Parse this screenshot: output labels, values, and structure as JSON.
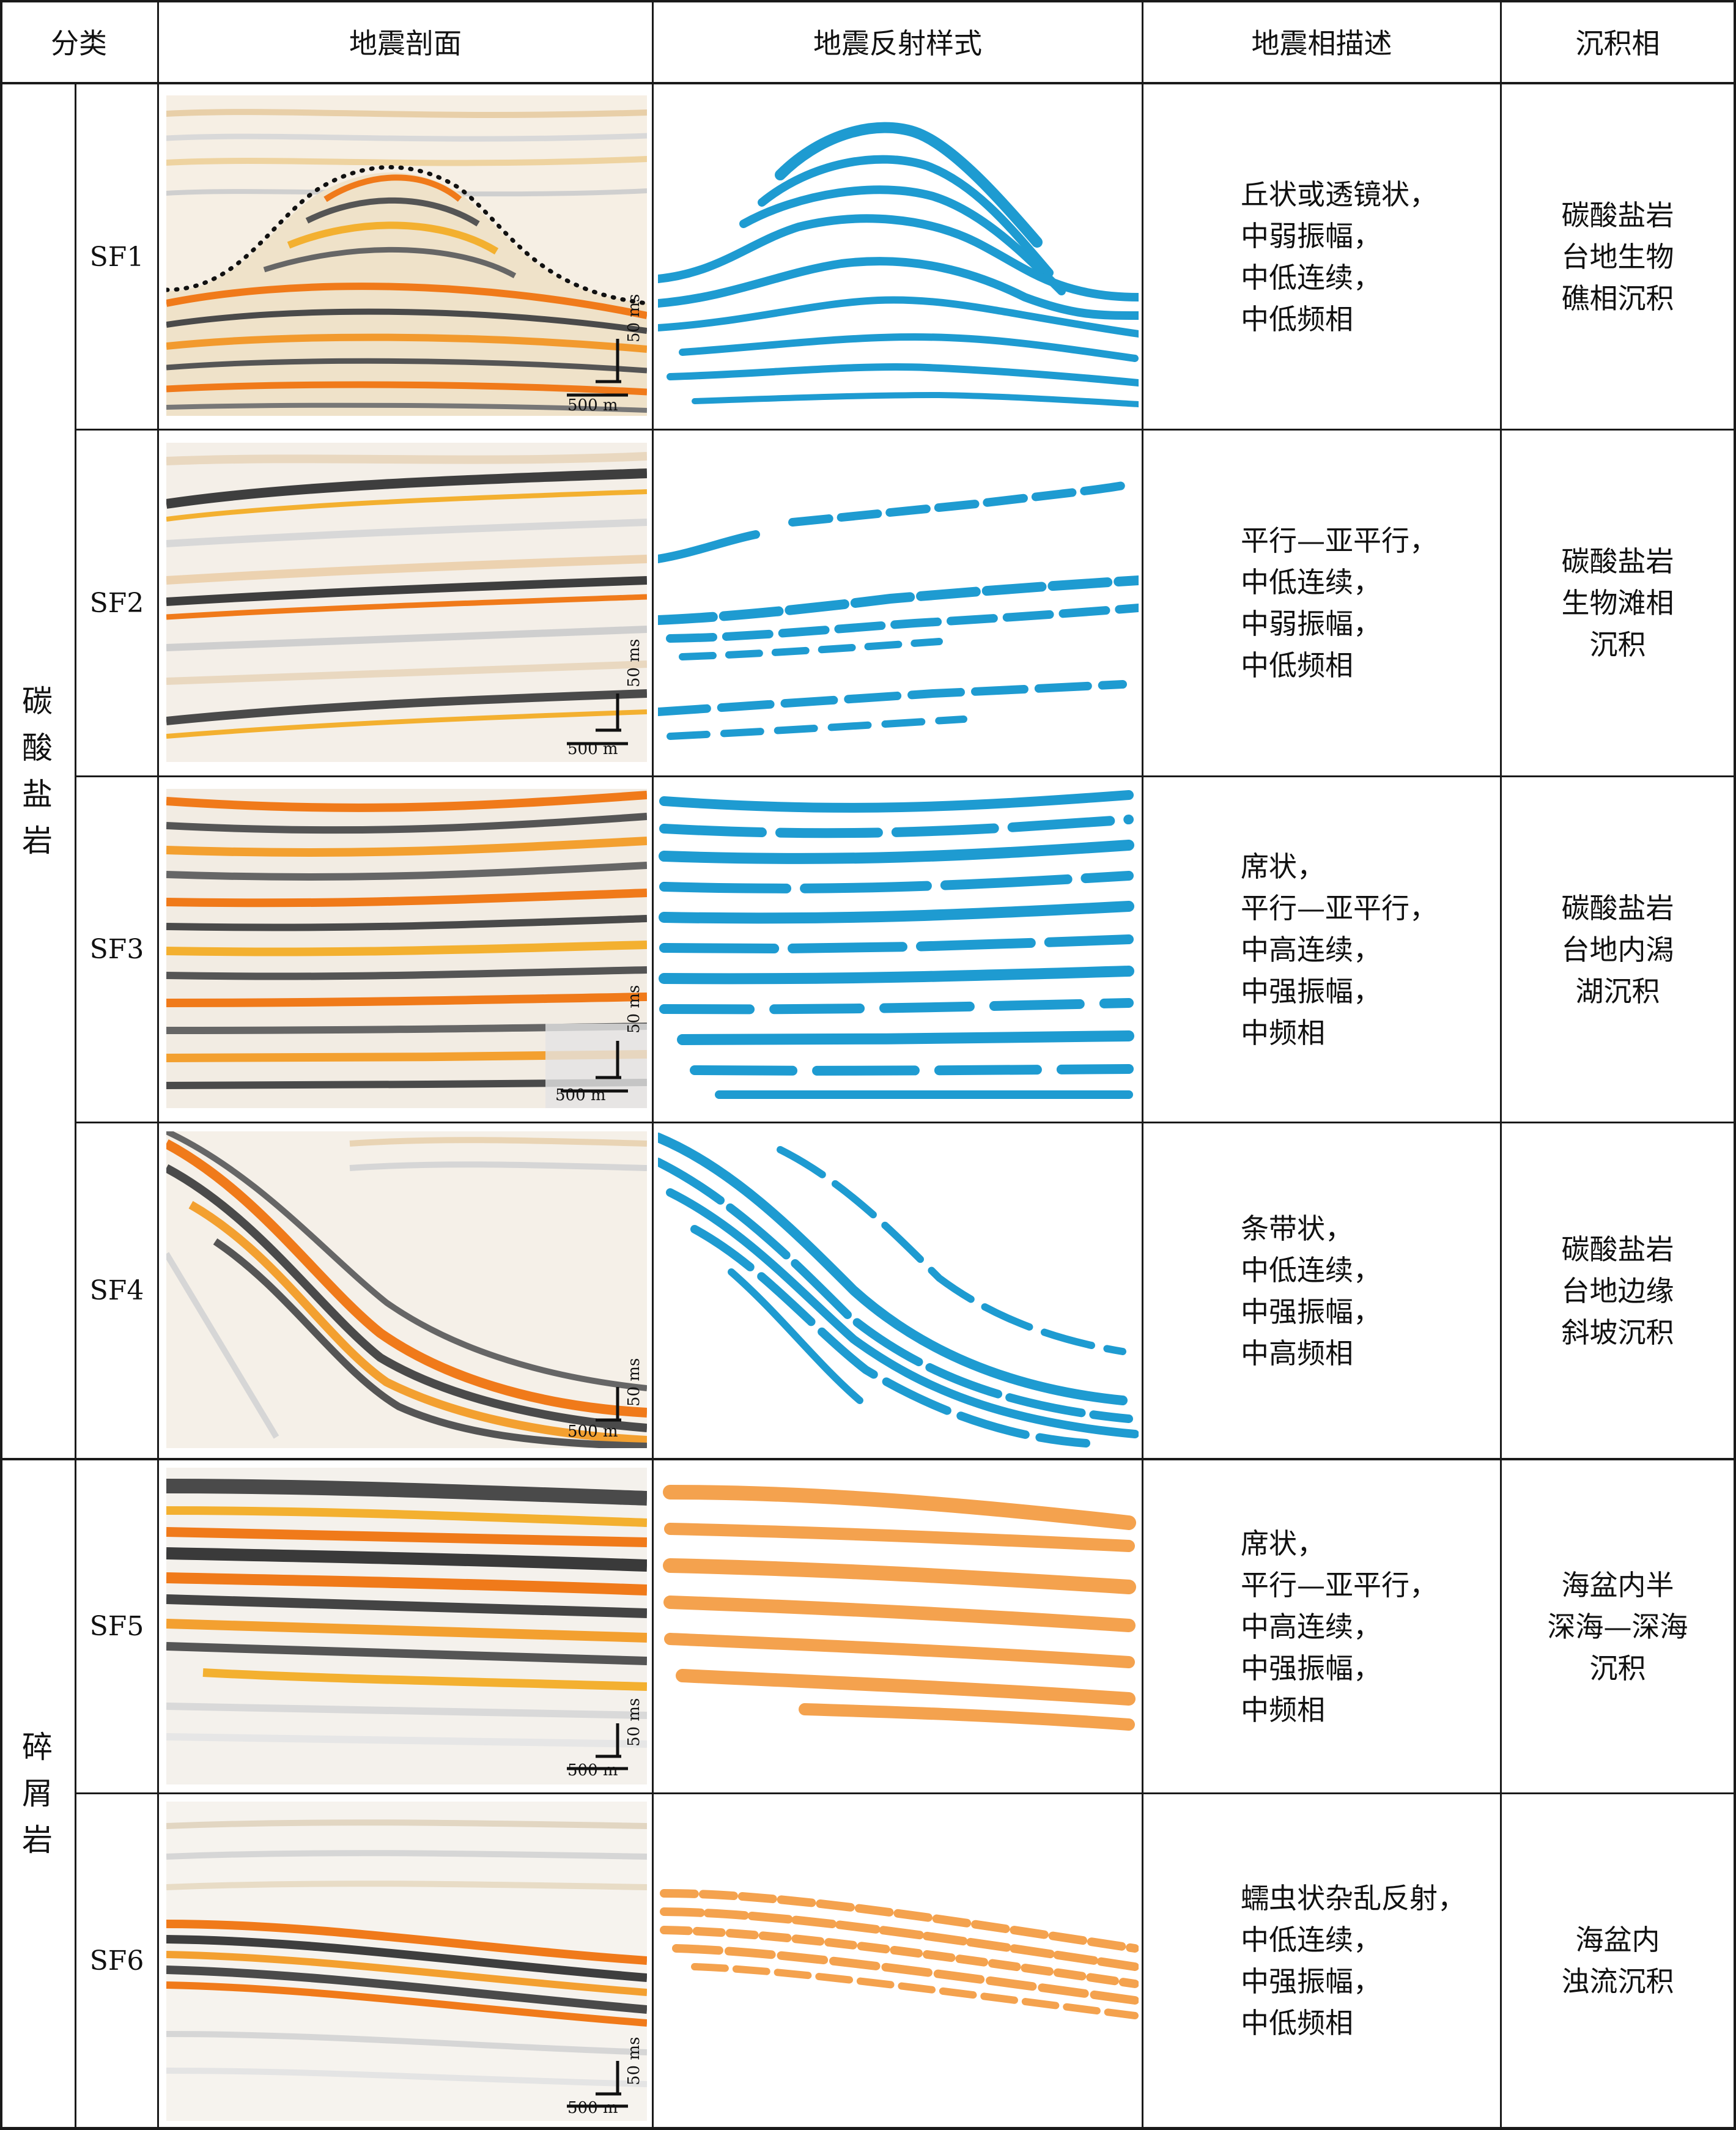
{
  "header": {
    "category": "分类",
    "section": "地震剖面",
    "pattern": "地震反射样式",
    "description": "地震相描述",
    "facies": "沉积相"
  },
  "groups": [
    {
      "label": [
        "碳",
        "酸",
        "盐",
        "岩"
      ]
    },
    {
      "label": [
        "碎",
        "屑",
        "岩"
      ]
    }
  ],
  "scale": {
    "horizontal": "500 m",
    "vertical": "50 ms"
  },
  "colors": {
    "carbonate_pattern": "#1e9bd1",
    "clastic_pattern": "#f4a24e",
    "seismic_peak": "#f07a1a",
    "seismic_trough": "#555555"
  },
  "rows": [
    {
      "code": "SF1",
      "description": "丘状或透镜状，\n中弱振幅，\n中低连续，\n中低频相",
      "facies": "碳酸盐岩\n台地生物\n礁相沉积"
    },
    {
      "code": "SF2",
      "description": "平行—亚平行，\n中低连续，\n中弱振幅，\n中低频相",
      "facies": "碳酸盐岩\n生物滩相\n沉积"
    },
    {
      "code": "SF3",
      "description": "席状，\n平行—亚平行，\n中高连续，\n中强振幅，\n中频相",
      "facies": "碳酸盐岩\n台地内潟\n湖沉积"
    },
    {
      "code": "SF4",
      "description": "条带状，\n中低连续，\n中强振幅，\n中高频相",
      "facies": "碳酸盐岩\n台地边缘\n斜坡沉积"
    },
    {
      "code": "SF5",
      "description": "席状，\n平行—亚平行，\n中高连续，\n中强振幅，\n中频相",
      "facies": "海盆内半\n深海—深海\n沉积"
    },
    {
      "code": "SF6",
      "description": "蠕虫状杂乱反射，\n中低连续，\n中强振幅，\n中低频相",
      "facies": "海盆内\n浊流沉积"
    }
  ]
}
